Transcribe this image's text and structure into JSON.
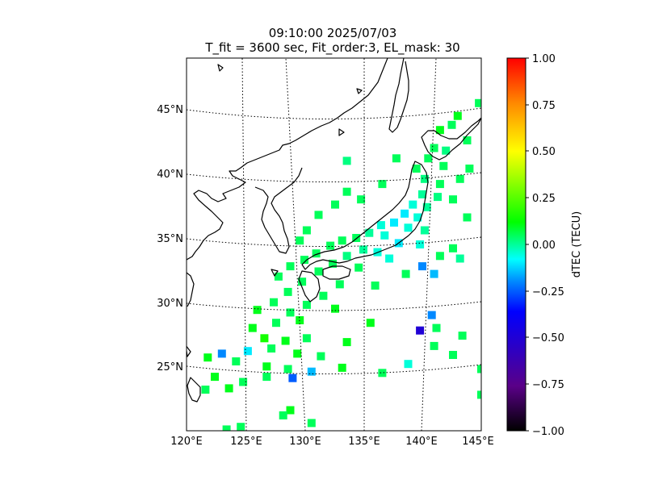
{
  "title": {
    "line1": "09:10:00 2025/07/03",
    "line2": "T_fit = 3600 sec, Fit_order:3, EL_mask: 30"
  },
  "map": {
    "lon_range": [
      120,
      145
    ],
    "lat_range": [
      20,
      49
    ],
    "lon_ticks": [
      "120°E",
      "125°E",
      "130°E",
      "135°E",
      "140°E",
      "145°E"
    ],
    "lat_ticks": [
      "25°N",
      "30°N",
      "35°N",
      "40°N",
      "45°N"
    ],
    "gridlines": true,
    "projection_note": "conic"
  },
  "colorbar": {
    "label": "dTEC (TECU)",
    "range": [
      -1.0,
      1.0
    ],
    "ticks": [
      "1.00",
      "0.75",
      "0.50",
      "0.25",
      "0.00",
      "−0.25",
      "−0.50",
      "−0.75",
      "−1.00"
    ],
    "colors": [
      "#000000",
      "#5a0088",
      "#0000ff",
      "#00ffff",
      "#00ff00",
      "#ffff00",
      "#ff0000"
    ]
  },
  "chart_data": {
    "type": "scatter",
    "title": "09:10:00 2025/07/03 / T_fit = 3600 sec, Fit_order:3, EL_mask: 30",
    "xlabel": "",
    "ylabel": "",
    "xlim": [
      120,
      145
    ],
    "ylim": [
      20,
      49
    ],
    "value_label": "dTEC (TECU)",
    "value_range": [
      -1,
      1
    ],
    "points": [
      [
        144.8,
        45.5,
        0.05
      ],
      [
        143.0,
        44.5,
        0.1
      ],
      [
        142.5,
        43.8,
        0.05
      ],
      [
        141.5,
        43.4,
        0.1
      ],
      [
        143.8,
        42.6,
        0.05
      ],
      [
        141.0,
        42.0,
        0.05
      ],
      [
        142.0,
        41.8,
        0.02
      ],
      [
        140.5,
        41.2,
        0.05
      ],
      [
        139.5,
        40.4,
        0.05
      ],
      [
        141.8,
        40.6,
        0.05
      ],
      [
        140.2,
        39.6,
        0.02
      ],
      [
        141.5,
        39.2,
        0.05
      ],
      [
        140.0,
        38.4,
        0.0
      ],
      [
        141.3,
        38.2,
        0.02
      ],
      [
        142.6,
        38.0,
        0.05
      ],
      [
        139.2,
        37.6,
        -0.05
      ],
      [
        140.4,
        37.4,
        0.0
      ],
      [
        138.5,
        36.9,
        -0.1
      ],
      [
        139.6,
        36.6,
        -0.05
      ],
      [
        137.6,
        36.2,
        -0.1
      ],
      [
        136.5,
        36.0,
        -0.05
      ],
      [
        138.8,
        35.8,
        -0.05
      ],
      [
        140.2,
        35.6,
        0.0
      ],
      [
        135.5,
        35.4,
        0.0
      ],
      [
        136.8,
        35.2,
        -0.05
      ],
      [
        134.4,
        35.0,
        0.05
      ],
      [
        133.2,
        34.8,
        0.05
      ],
      [
        138.0,
        34.6,
        -0.1
      ],
      [
        139.8,
        34.5,
        -0.05
      ],
      [
        132.2,
        34.4,
        0.05
      ],
      [
        135.0,
        34.1,
        0.0
      ],
      [
        136.2,
        33.9,
        -0.05
      ],
      [
        131.0,
        33.8,
        0.05
      ],
      [
        133.6,
        33.6,
        0.02
      ],
      [
        141.5,
        33.6,
        0.05
      ],
      [
        137.2,
        33.4,
        -0.05
      ],
      [
        130.0,
        33.3,
        0.05
      ],
      [
        132.4,
        33.0,
        0.05
      ],
      [
        140.0,
        32.8,
        -0.2
      ],
      [
        134.6,
        32.7,
        0.05
      ],
      [
        128.8,
        32.8,
        0.05
      ],
      [
        131.2,
        32.4,
        0.05
      ],
      [
        141.0,
        32.2,
        -0.15
      ],
      [
        138.6,
        32.2,
        0.05
      ],
      [
        127.8,
        32.0,
        0.05
      ],
      [
        129.8,
        31.6,
        0.05
      ],
      [
        133.0,
        31.4,
        0.05
      ],
      [
        136.0,
        31.3,
        0.05
      ],
      [
        128.6,
        30.8,
        0.05
      ],
      [
        131.6,
        30.5,
        0.05
      ],
      [
        127.4,
        30.0,
        0.05
      ],
      [
        130.2,
        29.8,
        0.05
      ],
      [
        132.6,
        29.5,
        0.1
      ],
      [
        126.0,
        29.4,
        0.1
      ],
      [
        128.8,
        29.2,
        0.05
      ],
      [
        125.6,
        28.0,
        0.1
      ],
      [
        127.6,
        28.4,
        0.05
      ],
      [
        129.6,
        28.6,
        0.1
      ],
      [
        135.6,
        28.4,
        0.1
      ],
      [
        140.8,
        29.0,
        -0.2
      ],
      [
        126.6,
        27.2,
        0.15
      ],
      [
        128.4,
        27.0,
        0.1
      ],
      [
        130.2,
        27.2,
        0.05
      ],
      [
        133.6,
        26.9,
        0.1
      ],
      [
        141.2,
        28.0,
        0.05
      ],
      [
        125.2,
        26.2,
        -0.1
      ],
      [
        127.2,
        26.4,
        0.05
      ],
      [
        129.4,
        26.0,
        0.1
      ],
      [
        131.4,
        25.8,
        0.05
      ],
      [
        123.0,
        26.0,
        -0.2
      ],
      [
        121.8,
        25.7,
        0.1
      ],
      [
        124.2,
        25.4,
        0.05
      ],
      [
        126.8,
        25.0,
        0.1
      ],
      [
        128.6,
        24.8,
        0.05
      ],
      [
        130.6,
        24.6,
        -0.15
      ],
      [
        133.2,
        24.9,
        0.1
      ],
      [
        136.6,
        24.5,
        0.05
      ],
      [
        138.8,
        25.2,
        -0.05
      ],
      [
        141.0,
        26.6,
        0.05
      ],
      [
        142.6,
        25.9,
        0.05
      ],
      [
        143.4,
        27.4,
        0.05
      ],
      [
        139.8,
        27.8,
        -0.5
      ],
      [
        122.4,
        24.2,
        0.1
      ],
      [
        124.8,
        23.8,
        0.05
      ],
      [
        123.6,
        23.3,
        0.1
      ],
      [
        121.6,
        23.2,
        0.05
      ],
      [
        126.8,
        24.2,
        0.05
      ],
      [
        129.0,
        24.1,
        -0.25
      ],
      [
        145.0,
        24.8,
        0.05
      ],
      [
        145.0,
        22.8,
        0.05
      ],
      [
        128.8,
        21.6,
        0.1
      ],
      [
        128.2,
        21.2,
        0.05
      ],
      [
        130.6,
        20.6,
        0.05
      ],
      [
        124.6,
        20.3,
        0.05
      ],
      [
        123.4,
        20.1,
        0.05
      ],
      [
        132.6,
        37.6,
        0.05
      ],
      [
        131.2,
        36.8,
        0.05
      ],
      [
        133.6,
        38.6,
        0.05
      ],
      [
        134.8,
        38.0,
        0.05
      ],
      [
        136.6,
        39.2,
        0.05
      ],
      [
        133.6,
        41.0,
        0.02
      ],
      [
        130.2,
        35.6,
        0.05
      ],
      [
        129.6,
        34.8,
        0.05
      ],
      [
        137.8,
        41.2,
        0.05
      ],
      [
        143.8,
        36.6,
        0.05
      ],
      [
        143.2,
        39.6,
        0.05
      ],
      [
        144.0,
        40.4,
        0.05
      ],
      [
        142.6,
        34.2,
        0.05
      ],
      [
        143.2,
        33.4,
        0.0
      ]
    ]
  }
}
